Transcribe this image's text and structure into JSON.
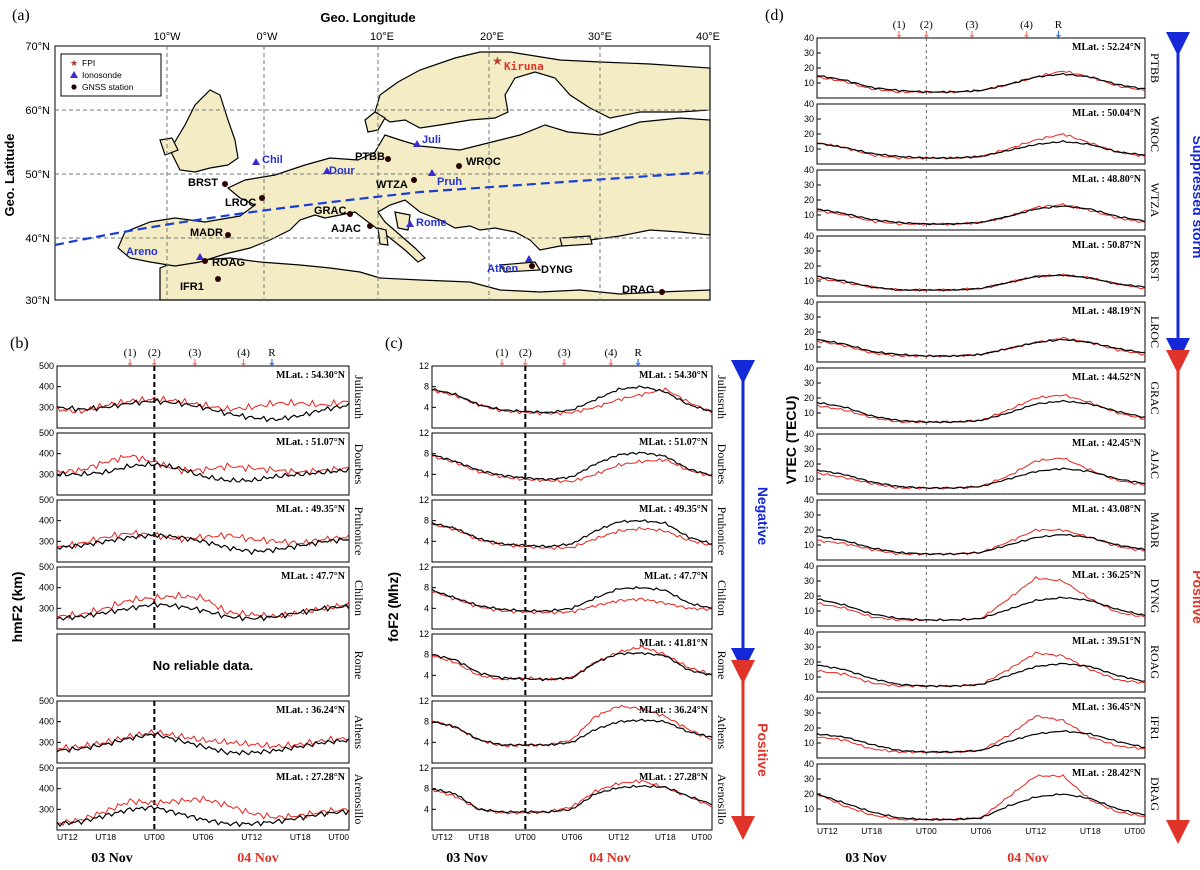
{
  "colors": {
    "obs": "#e8231e",
    "ref": "#000000",
    "negative": "#1528d8",
    "positive": "#e0342a",
    "land": "#f3ecc4",
    "sea": "#ffffff",
    "storm_line": "#1a3fd6",
    "arrow_red": "#f08070",
    "arrow_blue": "#3a6fe8"
  },
  "map": {
    "panel_label": "(a)",
    "title": "Geo. Longitude",
    "ylabel": "Geo. Latitude",
    "lon_ticks": [
      "10°W",
      "0°W",
      "10°E",
      "20°E",
      "30°E",
      "40°E"
    ],
    "lat_ticks": [
      "70°N",
      "60°N",
      "50°N",
      "40°N",
      "30°N"
    ],
    "legend": {
      "fpi": "FPI",
      "ionosonde": "Ionosonde",
      "gnss": "GNSS station"
    },
    "fpi_labels": [
      "Kiruna"
    ],
    "ionosonde_labels": [
      "Chil",
      "Dour",
      "Juli",
      "Pruh",
      "Rome",
      "Athen",
      "Areno"
    ],
    "gnss_labels": [
      "PTBB",
      "WROC",
      "BRST",
      "WTZA",
      "LROC",
      "GRAC",
      "AJAC",
      "MADR",
      "DYNG",
      "ROAG",
      "IFR1",
      "DRAG"
    ]
  },
  "days": {
    "day1": "03 Nov",
    "day2": "04 Nov"
  },
  "events": {
    "labels": [
      "(1)",
      "(2)",
      "(3)",
      "(4)",
      "R"
    ]
  },
  "x_ticks": [
    "UT12",
    "UT18",
    "UT00",
    "UT06",
    "UT12",
    "UT18",
    "UT00"
  ],
  "chart_data": [
    {
      "type": "line",
      "panel": "(b)",
      "ylabel": "hmF2 (km)",
      "ylim": [
        200,
        500
      ],
      "yticks": [
        "500",
        "400",
        "300"
      ],
      "xlim_hours": [
        0,
        36
      ],
      "storm_onset_hour": 12,
      "stations": [
        "Juliusruh",
        "Dourbes",
        "Pruhonice",
        "Chilton",
        "Rome",
        "Athens",
        "Arenosillo"
      ],
      "mlat": [
        "MLat. : 54.30°N",
        "MLat. : 51.07°N",
        "MLat. : 49.35°N",
        "MLat. : 47.7°N",
        "",
        "MLat. : 36.24°N",
        "MLat. : 27.28°N"
      ],
      "no_data_text": "No reliable data.",
      "series": [
        {
          "name": "reference",
          "values": [
            [
              300,
              290,
              300,
              320,
              330,
              320,
              300,
              270,
              250,
              240,
              260,
              290,
              310
            ],
            [
              300,
              300,
              310,
              340,
              350,
              330,
              290,
              270,
              270,
              290,
              300,
              310,
              320
            ],
            [
              270,
              280,
              300,
              320,
              330,
              320,
              300,
              270,
              250,
              260,
              280,
              300,
              310
            ],
            [
              250,
              260,
              280,
              300,
              320,
              310,
              290,
              260,
              250,
              260,
              280,
              300,
              310
            ],
            [],
            [
              260,
              270,
              290,
              320,
              340,
              310,
              280,
              250,
              250,
              260,
              280,
              300,
              310
            ],
            [
              230,
              240,
              270,
              300,
              310,
              280,
              250,
              230,
              230,
              240,
              260,
              280,
              290
            ]
          ]
        },
        {
          "name": "observed",
          "values": [
            [
              290,
              280,
              310,
              330,
              340,
              330,
              310,
              290,
              300,
              320,
              320,
              310,
              330
            ],
            [
              310,
              320,
              360,
              390,
              360,
              320,
              320,
              340,
              330,
              320,
              310,
              320,
              330
            ],
            [
              270,
              290,
              320,
              340,
              330,
              310,
              320,
              330,
              310,
              300,
              290,
              310,
              320
            ],
            [
              260,
              270,
              300,
              340,
              350,
              360,
              350,
              280,
              270,
              260,
              280,
              300,
              320
            ],
            [],
            [
              270,
              280,
              300,
              330,
              350,
              330,
              310,
              300,
              290,
              280,
              290,
              310,
              320
            ],
            [
              230,
              250,
              290,
              340,
              330,
              340,
              350,
              320,
              280,
              260,
              270,
              290,
              300
            ]
          ]
        }
      ]
    },
    {
      "type": "line",
      "panel": "(c)",
      "ylabel": "foF2 (Mhz)",
      "ylim": [
        0,
        12
      ],
      "yticks": [
        "12",
        "8",
        "4"
      ],
      "xlim_hours": [
        0,
        36
      ],
      "storm_onset_hour": 12,
      "stations": [
        "Juliusruh",
        "Dourbes",
        "Pruhonice",
        "Chilton",
        "Rome",
        "Athens",
        "Arenosillo"
      ],
      "mlat": [
        "MLat. : 54.30°N",
        "MLat. : 51.07°N",
        "MLat. : 49.35°N",
        "MLat. : 47.7°N",
        "MLat. : 41.81°N",
        "MLat. : 36.24°N",
        "MLat. : 27.28°N"
      ],
      "annotations": {
        "negative": "Negative",
        "positive": "Positive"
      },
      "series": [
        {
          "name": "reference",
          "values": [
            [
              7.5,
              6.5,
              4.5,
              3.5,
              3.2,
              3,
              3.5,
              5.5,
              7.5,
              8,
              7,
              4.5,
              3.2
            ],
            [
              7.8,
              6.5,
              4.8,
              3.8,
              3.3,
              3,
              3.5,
              6,
              7.8,
              8.2,
              7.5,
              5,
              3.8
            ],
            [
              7.5,
              6.5,
              4.5,
              3.5,
              3.2,
              3,
              3.5,
              6,
              7.8,
              8,
              7.5,
              4.8,
              3.5
            ],
            [
              7.5,
              6,
              4.5,
              3.8,
              3.5,
              3.5,
              4,
              6,
              7.8,
              8,
              7.5,
              5,
              4
            ],
            [
              8,
              7,
              4.5,
              3.5,
              3.3,
              3.2,
              3.5,
              6.5,
              8.2,
              8.3,
              7.8,
              5,
              4
            ],
            [
              8,
              7,
              4.5,
              3.5,
              3.5,
              3.5,
              4,
              6.5,
              8,
              8.3,
              8,
              6,
              5
            ],
            [
              8,
              7,
              4,
              3.5,
              3.5,
              3.5,
              4,
              7,
              8.2,
              8.5,
              8.3,
              6.5,
              5
            ]
          ]
        },
        {
          "name": "observed",
          "values": [
            [
              7.3,
              6.3,
              4.5,
              3.3,
              3,
              2.8,
              3,
              4,
              5.5,
              6.5,
              7.5,
              5,
              3
            ],
            [
              7.5,
              6.3,
              4.5,
              3.5,
              3,
              2.8,
              2.6,
              4,
              5.8,
              6.5,
              6.8,
              4.8,
              3.6
            ],
            [
              7.3,
              6.3,
              4.3,
              3.3,
              3,
              2.7,
              2.8,
              4.5,
              6,
              6.5,
              6,
              4.2,
              3.2
            ],
            [
              7.3,
              5.8,
              4.3,
              3.5,
              3.3,
              3.2,
              3.3,
              4.5,
              5.5,
              5.8,
              5,
              4,
              3.8
            ],
            [
              7.8,
              6.5,
              4,
              3.2,
              3.5,
              3.2,
              3.5,
              6.5,
              8.5,
              9.5,
              8,
              5.5,
              4.2
            ],
            [
              8.2,
              7,
              4.5,
              3.3,
              3.5,
              3.5,
              4.5,
              9,
              11,
              10.5,
              9,
              6.5,
              4.5
            ],
            [
              7.8,
              6.5,
              4,
              3.3,
              3.3,
              3.5,
              4.5,
              7.5,
              9,
              9.5,
              8.2,
              6.5,
              4.5
            ]
          ]
        }
      ]
    },
    {
      "type": "line",
      "panel": "(d)",
      "ylabel": "VTEC (TECU)",
      "ylim": [
        0,
        40
      ],
      "yticks": [
        "40",
        "30",
        "20",
        "10"
      ],
      "xlim_hours": [
        0,
        36
      ],
      "storm_onset_hour": 12,
      "stations": [
        "PTBB",
        "WROC",
        "WTZA",
        "BRST",
        "LROC",
        "GRAC",
        "AJAC",
        "MADR",
        "DYNG",
        "ROAG",
        "IFR1",
        "DRAG"
      ],
      "mlat": [
        "MLat. : 52.24°N",
        "MLat. : 50.04°N",
        "MLat. : 48.80°N",
        "MLat. : 50.87°N",
        "MLat. : 48.19°N",
        "MLat. : 44.52°N",
        "MLat. : 42.45°N",
        "MLat. : 43.08°N",
        "MLat. : 36.25°N",
        "MLat. : 39.51°N",
        "MLat. : 36.45°N",
        "MLat. : 28.42°N"
      ],
      "annotations": {
        "suppressed": "Suppressed storm",
        "positive": "Positive"
      },
      "series": [
        {
          "name": "reference",
          "values": [
            [
              15,
              12,
              7,
              5,
              4,
              4,
              5,
              9,
              14,
              16,
              14,
              9,
              6
            ],
            [
              14,
              11,
              7,
              5,
              4,
              4,
              5,
              9,
              13,
              15,
              13,
              8,
              6
            ],
            [
              14,
              11,
              7,
              5,
              4,
              4,
              5,
              9,
              14,
              16,
              14,
              9,
              6
            ],
            [
              13,
              10,
              6,
              4,
              4,
              4,
              5,
              9,
              13,
              14,
              12,
              8,
              6
            ],
            [
              15,
              12,
              7,
              5,
              4,
              4,
              5,
              9,
              13,
              15,
              13,
              9,
              6
            ],
            [
              17,
              14,
              8,
              5,
              4,
              4,
              5,
              10,
              16,
              18,
              16,
              11,
              7
            ],
            [
              16,
              13,
              8,
              5,
              4,
              4,
              5,
              10,
              15,
              17,
              15,
              10,
              7
            ],
            [
              16,
              13,
              8,
              5,
              4,
              4,
              5,
              10,
              15,
              17,
              15,
              10,
              7
            ],
            [
              18,
              14,
              8,
              5,
              4,
              4,
              5,
              11,
              17,
              19,
              17,
              11,
              7
            ],
            [
              18,
              15,
              9,
              5,
              4,
              4,
              5,
              11,
              17,
              19,
              17,
              11,
              7
            ],
            [
              16,
              14,
              9,
              5,
              4,
              4,
              5,
              11,
              16,
              18,
              16,
              11,
              7
            ],
            [
              20,
              14,
              8,
              4,
              3,
              3,
              4,
              12,
              18,
              20,
              17,
              10,
              6
            ]
          ]
        },
        {
          "name": "observed",
          "values": [
            [
              14,
              11,
              6,
              4,
              4,
              4,
              5,
              9,
              14,
              18,
              14,
              8,
              5
            ],
            [
              14,
              11,
              6,
              4,
              4,
              4,
              5,
              10,
              16,
              20,
              14,
              8,
              5
            ],
            [
              13,
              10,
              6,
              4,
              4,
              4,
              5,
              9,
              15,
              17,
              13,
              8,
              5
            ],
            [
              12,
              9,
              6,
              4,
              4,
              4,
              5,
              9,
              13,
              14,
              12,
              8,
              5
            ],
            [
              14,
              11,
              6,
              4,
              4,
              4,
              5,
              9,
              13,
              16,
              13,
              8,
              5
            ],
            [
              15,
              12,
              7,
              4,
              4,
              4,
              5,
              12,
              20,
              22,
              17,
              10,
              6
            ],
            [
              14,
              11,
              7,
              4,
              4,
              4,
              5,
              12,
              22,
              24,
              16,
              9,
              6
            ],
            [
              13,
              11,
              7,
              4,
              4,
              4,
              5,
              12,
              20,
              20,
              15,
              9,
              6
            ],
            [
              15,
              12,
              6,
              4,
              4,
              4,
              5,
              18,
              32,
              30,
              18,
              9,
              6
            ],
            [
              14,
              12,
              6,
              4,
              4,
              4,
              5,
              15,
              26,
              24,
              15,
              8,
              6
            ],
            [
              14,
              12,
              6,
              4,
              4,
              4,
              5,
              15,
              28,
              25,
              14,
              8,
              6
            ],
            [
              20,
              12,
              6,
              3,
              3,
              3,
              4,
              18,
              32,
              32,
              16,
              8,
              5
            ]
          ]
        }
      ]
    }
  ]
}
